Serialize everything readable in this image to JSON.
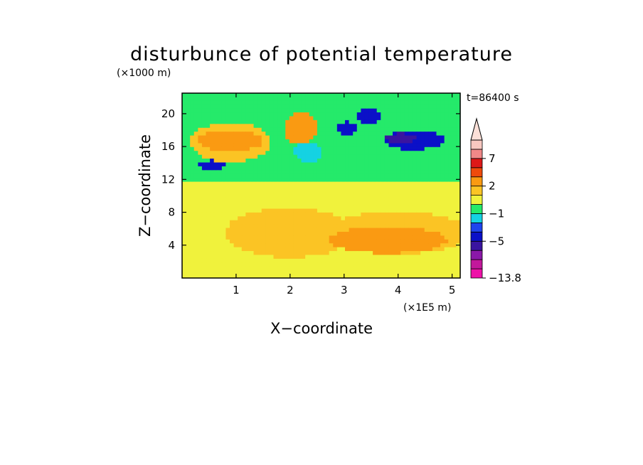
{
  "chart_data": {
    "type": "heatmap",
    "title": "disturbunce of potential temperature",
    "time_label": "t=86400 s",
    "xlabel": "X−coordinate",
    "ylabel": "Z−coordinate",
    "x_unit": "(×1E5 m)",
    "y_unit": "(×1000 m)",
    "xlim": [
      0,
      5.15
    ],
    "ylim": [
      0,
      22.5
    ],
    "x_ticks": [
      1,
      2,
      3,
      4,
      5
    ],
    "x_tick_labels": [
      "1",
      "2",
      "3",
      "4",
      "5"
    ],
    "y_ticks": [
      4,
      8,
      12,
      16,
      20
    ],
    "y_tick_labels": [
      "4",
      "8",
      "12",
      "16",
      "20"
    ],
    "colorbar": {
      "levels": [
        -13.8,
        -11,
        -9,
        -7,
        -5,
        -3,
        -2,
        -1,
        0,
        1,
        2,
        3,
        5,
        7,
        9
      ],
      "colors": [
        "#ee11a8",
        "#c2189b",
        "#8a18a8",
        "#3a14a0",
        "#0b10c8",
        "#1e44ee",
        "#15d2e2",
        "#25ea6a",
        "#f0f23c",
        "#fbc424",
        "#fa9a12",
        "#ef4a0c",
        "#dd1818",
        "#f08888",
        "#f8c8c0"
      ],
      "labels": [
        "7",
        "2",
        "−1",
        "−5",
        "−13.8"
      ],
      "label_values": [
        7,
        2,
        -1,
        -5,
        -13.8
      ],
      "extend": "max"
    },
    "regions": [
      {
        "kind": "background",
        "value": 0.5
      },
      {
        "kind": "band",
        "z": [
          8.5,
          12.5
        ],
        "value": 0.5
      },
      {
        "kind": "band",
        "z": [
          11.8,
          13.3
        ],
        "value": -0.5
      },
      {
        "kind": "band",
        "z": [
          13.3,
          22.5
        ],
        "value": -0.5
      },
      {
        "kind": "blob",
        "x": 2.0,
        "z": 5.5,
        "rx": 1.2,
        "rz": 3.0,
        "value": 1.5
      },
      {
        "kind": "blob",
        "x": 4.0,
        "z": 5.5,
        "rx": 1.3,
        "rz": 2.6,
        "value": 1.5
      },
      {
        "kind": "blob",
        "x": 3.8,
        "z": 4.6,
        "rx": 1.1,
        "rz": 1.6,
        "value": 2.5
      },
      {
        "kind": "blob",
        "x": 0.9,
        "z": 16.5,
        "rx": 0.75,
        "rz": 2.4,
        "value": 1.5
      },
      {
        "kind": "blob",
        "x": 0.9,
        "z": 16.7,
        "rx": 0.6,
        "rz": 1.3,
        "value": 2.5
      },
      {
        "kind": "blob",
        "x": 2.2,
        "z": 18.2,
        "rx": 0.3,
        "rz": 2.0,
        "value": 2.5
      },
      {
        "kind": "blob",
        "x": 0.55,
        "z": 13.7,
        "rx": 0.25,
        "rz": 0.6,
        "value": -4.0
      },
      {
        "kind": "blob",
        "x": 3.45,
        "z": 19.7,
        "rx": 0.2,
        "rz": 1.0,
        "value": -4.0
      },
      {
        "kind": "blob",
        "x": 3.05,
        "z": 18.2,
        "rx": 0.2,
        "rz": 0.8,
        "value": -4.0
      },
      {
        "kind": "blob",
        "x": 4.3,
        "z": 16.8,
        "rx": 0.55,
        "rz": 1.2,
        "value": -4.0
      },
      {
        "kind": "blob",
        "x": 4.05,
        "z": 17.0,
        "rx": 0.3,
        "rz": 0.6,
        "value": -6.0
      },
      {
        "kind": "blob",
        "x": 2.33,
        "z": 15.3,
        "rx": 0.25,
        "rz": 1.3,
        "value": -1.5
      }
    ]
  }
}
